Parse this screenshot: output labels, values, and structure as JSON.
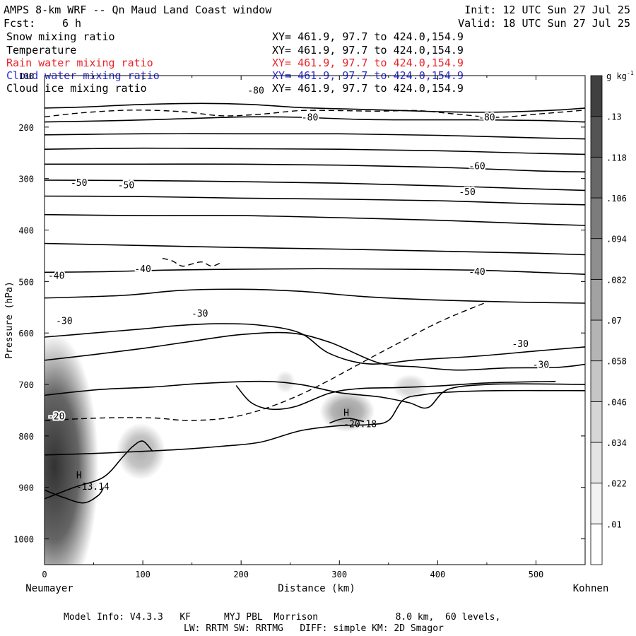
{
  "header": {
    "title": "AMPS 8-km WRF -- Qn Maud Land Coast window",
    "fcst_label": "Fcst:",
    "fcst_value": "6 h",
    "init": "Init: 12 UTC Sun 27 Jul 25",
    "valid": "Valid: 18 UTC Sun 27 Jul 25"
  },
  "fields": [
    {
      "name": "Snow mixing ratio",
      "xy": "XY= 461.9, 97.7 to 424.0,154.9",
      "color": "#000000"
    },
    {
      "name": "Temperature",
      "xy": "XY= 461.9, 97.7 to 424.0,154.9",
      "color": "#000000"
    },
    {
      "name": "Rain water mixing ratio",
      "xy": "XY= 461.9, 97.7 to 424.0,154.9",
      "color": "#e8232a"
    },
    {
      "name": "Cloud water mixing ratio",
      "xy": "XY= 461.9, 97.7 to 424.0,154.9",
      "color": "#2b2bd0"
    },
    {
      "name": "Cloud ice mixing ratio",
      "xy": "XY= 461.9, 97.7 to 424.0,154.9",
      "color": "#000000"
    }
  ],
  "chart_data": {
    "type": "heatmap",
    "xlabel": "Distance (km)",
    "ylabel": "Pressure (hPa)",
    "x_left_label": "Neumayer",
    "x_right_label": "Kohnen",
    "xlim": [
      0,
      550
    ],
    "ylim": [
      1050,
      100
    ],
    "x_ticks": [
      0,
      100,
      200,
      300,
      400,
      500
    ],
    "y_ticks": [
      100,
      200,
      300,
      400,
      500,
      600,
      700,
      800,
      900,
      1000
    ],
    "colorbar": {
      "unit": "g kg",
      "unit_sup": "-1",
      "levels": [
        ".01",
        ".022",
        ".034",
        ".046",
        ".058",
        ".07",
        ".082",
        ".094",
        ".106",
        ".118",
        ".13"
      ],
      "colors": [
        "#ffffff",
        "#f2f2f2",
        "#e4e4e4",
        "#d6d6d6",
        "#c6c6c6",
        "#b4b4b4",
        "#a2a2a2",
        "#8f8f8f",
        "#7c7c7c",
        "#686868",
        "#545454",
        "#404040"
      ]
    },
    "snow_blobs": [
      {
        "x": 10,
        "p": 860,
        "rx": 45,
        "rp": 260,
        "peak": 0.14
      },
      {
        "x": 98,
        "p": 830,
        "rx": 25,
        "rp": 55,
        "peak": 0.045
      },
      {
        "x": 308,
        "p": 752,
        "rx": 28,
        "rp": 40,
        "peak": 0.06
      },
      {
        "x": 372,
        "p": 705,
        "rx": 18,
        "rp": 25,
        "peak": 0.02
      },
      {
        "x": 245,
        "p": 695,
        "rx": 10,
        "rp": 22,
        "peak": 0.012
      }
    ],
    "temperature_isotherms": [
      {
        "level": -80,
        "x": [
          0,
          40,
          100,
          160,
          210,
          260,
          330,
          400,
          460,
          520,
          550
        ],
        "p": [
          163,
          161,
          156,
          154,
          156,
          162,
          166,
          170,
          171,
          167,
          163
        ]
      },
      {
        "level": -80,
        "x": [
          0,
          60,
          120,
          170,
          210,
          260,
          320,
          380,
          440,
          500,
          550
        ],
        "p": [
          190,
          188,
          185,
          182,
          180,
          181,
          185,
          186,
          186,
          187,
          190
        ]
      },
      {
        "level": null,
        "x": [
          0,
          100,
          200,
          300,
          400,
          500,
          550
        ],
        "p": [
          215,
          213,
          213,
          213,
          216,
          221,
          223
        ]
      },
      {
        "level": null,
        "x": [
          0,
          100,
          200,
          300,
          400,
          500,
          550
        ],
        "p": [
          243,
          241,
          242,
          243,
          246,
          251,
          253
        ]
      },
      {
        "level": -60,
        "x": [
          0,
          100,
          200,
          300,
          400,
          500,
          550
        ],
        "p": [
          272,
          272,
          272,
          274,
          278,
          285,
          287
        ]
      },
      {
        "level": null,
        "x": [
          0,
          100,
          200,
          300,
          400,
          500,
          550
        ],
        "p": [
          303,
          304,
          306,
          309,
          314,
          320,
          323
        ]
      },
      {
        "level": null,
        "x": [
          0,
          100,
          200,
          300,
          400,
          500,
          550
        ],
        "p": [
          334,
          335,
          338,
          340,
          343,
          349,
          351
        ]
      },
      {
        "level": -50,
        "x": [
          0,
          100,
          200,
          300,
          400,
          500,
          550
        ],
        "p": [
          370,
          372,
          372,
          376,
          381,
          388,
          391
        ]
      },
      {
        "level": null,
        "x": [
          0,
          100,
          200,
          300,
          400,
          500,
          550
        ],
        "p": [
          426,
          430,
          434,
          437,
          441,
          445,
          448
        ]
      },
      {
        "level": -40,
        "x": [
          0,
          60,
          120,
          200,
          280,
          360,
          440,
          500,
          550
        ],
        "p": [
          482,
          481,
          478,
          476,
          475,
          476,
          478,
          482,
          486
        ]
      },
      {
        "level": null,
        "x": [
          0,
          80,
          140,
          200,
          260,
          330,
          400,
          480,
          550
        ],
        "p": [
          532,
          527,
          517,
          515,
          519,
          530,
          536,
          540,
          542
        ]
      },
      {
        "level": -30,
        "x": [
          0,
          50,
          100,
          140,
          180,
          220,
          260,
          290,
          330,
          380,
          440,
          500,
          550
        ],
        "p": [
          608,
          600,
          592,
          585,
          582,
          585,
          600,
          640,
          660,
          652,
          645,
          635,
          627
        ]
      },
      {
        "level": -30,
        "x": [
          0,
          50,
          100,
          150,
          200,
          250,
          290,
          340,
          380,
          420,
          470,
          520,
          550
        ],
        "p": [
          653,
          642,
          630,
          616,
          603,
          600,
          618,
          658,
          666,
          672,
          668,
          667,
          661
        ]
      },
      {
        "level": -30,
        "x": [
          520,
          450,
          400,
          360,
          320,
          290,
          255,
          230,
          210,
          195
        ],
        "p": [
          694,
          697,
          703,
          706,
          708,
          717,
          743,
          748,
          735,
          702
        ]
      },
      {
        "level": -20,
        "x": [
          0,
          55,
          110,
          160,
          220,
          260,
          300,
          340,
          370,
          390,
          410,
          450,
          500,
          550
        ],
        "p": [
          721,
          710,
          705,
          698,
          694,
          700,
          716,
          724,
          735,
          745,
          710,
          700,
          699,
          700
        ]
      },
      {
        "level": null,
        "x": [
          0,
          50,
          100,
          140,
          180,
          220,
          260,
          300,
          330,
          350,
          365,
          385,
          410,
          460,
          550
        ],
        "p": [
          837,
          834,
          830,
          826,
          820,
          812,
          790,
          780,
          778,
          770,
          730,
          720,
          715,
          712,
          712
        ]
      },
      {
        "level": null,
        "x": [
          0,
          30,
          60,
          80,
          90,
          100,
          110
        ],
        "p": [
          922,
          900,
          880,
          840,
          820,
          810,
          830
        ]
      },
      {
        "level": -13.14,
        "x": [
          0,
          20,
          40,
          55,
          60
        ],
        "p": [
          905,
          920,
          930,
          915,
          900
        ]
      },
      {
        "level": -20.18,
        "x": [
          290,
          300,
          310,
          325
        ],
        "p": [
          775,
          768,
          766,
          772
        ]
      }
    ],
    "cloud_ice_contours": [
      {
        "x": [
          0,
          40,
          90,
          140,
          180,
          220,
          260,
          300,
          340,
          380,
          420,
          460,
          500,
          550
        ],
        "p": [
          180,
          172,
          167,
          170,
          178,
          175,
          168,
          168,
          169,
          168,
          175,
          181,
          175,
          167
        ]
      },
      {
        "x": [
          0,
          60,
          110,
          150,
          200,
          260,
          340,
          400,
          450
        ],
        "p": [
          770,
          765,
          765,
          770,
          760,
          720,
          640,
          580,
          540
        ]
      },
      {
        "x": [
          120,
          130,
          140,
          150,
          160,
          170,
          180
        ],
        "p": [
          455,
          460,
          470,
          466,
          462,
          470,
          463
        ]
      }
    ],
    "contour_labels": [
      {
        "text": "-80",
        "x": 215,
        "p": 128
      },
      {
        "text": "-80",
        "x": 270,
        "p": 180
      },
      {
        "text": "-80",
        "x": 450,
        "p": 180
      },
      {
        "text": "-60",
        "x": 440,
        "p": 275
      },
      {
        "text": "-50",
        "x": 35,
        "p": 307
      },
      {
        "text": "-50",
        "x": 83,
        "p": 312
      },
      {
        "text": "-50",
        "x": 430,
        "p": 325
      },
      {
        "text": "-40",
        "x": 12,
        "p": 488
      },
      {
        "text": "-40",
        "x": 100,
        "p": 475
      },
      {
        "text": "-40",
        "x": 440,
        "p": 480
      },
      {
        "text": "-30",
        "x": 20,
        "p": 576
      },
      {
        "text": "-30",
        "x": 158,
        "p": 561
      },
      {
        "text": "-30",
        "x": 484,
        "p": 620
      },
      {
        "text": "-30",
        "x": 505,
        "p": 661
      },
      {
        "text": "-20",
        "x": 12,
        "p": 761
      }
    ],
    "extrema": [
      {
        "mark": "H",
        "value": "-13.14",
        "x": 38,
        "p": 902
      },
      {
        "mark": "H",
        "value": "-20.18",
        "x": 310,
        "p": 780
      }
    ]
  },
  "footer": {
    "line1": "Model Info: V4.3.3   KF      MYJ PBL  Morrison              8.0 km,  60 levels,",
    "line2": "LW: RRTM SW: RRTMG   DIFF: simple KM: 2D Smagor"
  }
}
